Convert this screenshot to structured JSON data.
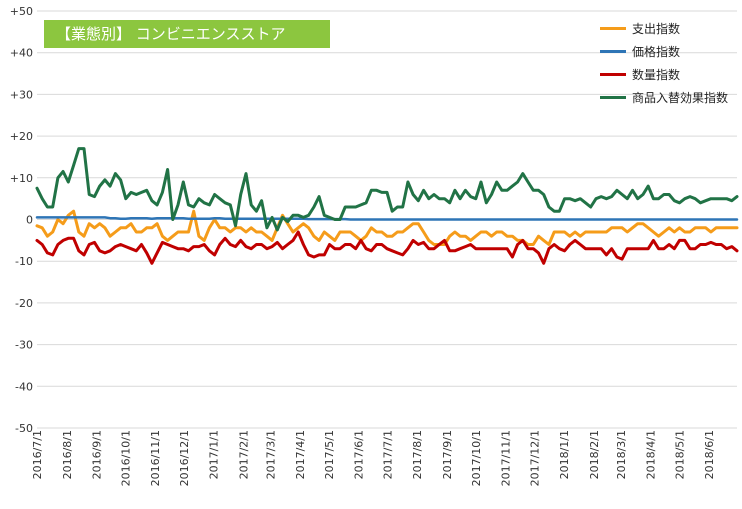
{
  "chart_data": {
    "type": "line",
    "title": "【業態別】 コンビニエンスストア",
    "xlabel": "",
    "ylabel": "",
    "ylim": [
      -50,
      50
    ],
    "y_ticks": [
      "+50",
      "+40",
      "+30",
      "+20",
      "+10",
      "0",
      "-10",
      "-20",
      "-30",
      "-40",
      "-50"
    ],
    "y_tick_values": [
      50,
      40,
      30,
      20,
      10,
      0,
      -10,
      -20,
      -30,
      -40,
      -50
    ],
    "x_start": "2016/7/1",
    "x_end": "2018/6/30",
    "x_tick_labels": [
      "2016/7/1",
      "2016/8/1",
      "2016/9/1",
      "2016/10/1",
      "2016/11/1",
      "2016/12/1",
      "2017/1/1",
      "2017/2/1",
      "2017/3/1",
      "2017/4/1",
      "2017/5/1",
      "2017/6/1",
      "2017/7/1",
      "2017/8/1",
      "2017/9/1",
      "2017/10/1",
      "2017/11/1",
      "2017/12/1",
      "2018/1/1",
      "2018/2/1",
      "2018/3/1",
      "2018/4/1",
      "2018/5/1",
      "2018/6/1"
    ],
    "grid": "horizontal",
    "legend_position": "top-right",
    "series": [
      {
        "name": "支出指数",
        "color": "#f59c1a",
        "values": [
          -1.5,
          -2,
          -4,
          -3,
          0,
          -1,
          1,
          2,
          -3,
          -4,
          -1,
          -2,
          -1,
          -2,
          -4,
          -3,
          -2,
          -2,
          -1,
          -3,
          -3,
          -2,
          -2,
          -1,
          -4,
          -5,
          -4,
          -3,
          -3,
          -3,
          2,
          -4,
          -5,
          -2,
          0,
          -2,
          -2,
          -3,
          -2,
          -2,
          -3,
          -2,
          -3,
          -3,
          -4,
          -5,
          -2,
          1,
          -1,
          -3,
          -2,
          -1,
          -2,
          -4,
          -5,
          -3,
          -4,
          -5,
          -3,
          -3,
          -3,
          -4,
          -5,
          -4,
          -2,
          -3,
          -3,
          -4,
          -4,
          -3,
          -3,
          -2,
          -1,
          -1,
          -3,
          -5,
          -6,
          -6,
          -6,
          -4,
          -3,
          -4,
          -4,
          -5,
          -4,
          -3,
          -3,
          -4,
          -3,
          -3,
          -4,
          -4,
          -5,
          -5,
          -6,
          -6,
          -4,
          -5,
          -6,
          -3,
          -3,
          -3,
          -4,
          -3,
          -4,
          -3,
          -3,
          -3,
          -3,
          -3,
          -2,
          -2,
          -2,
          -3,
          -2,
          -1,
          -1,
          -2,
          -3,
          -4,
          -3,
          -2,
          -3,
          -2,
          -3,
          -3,
          -2,
          -2,
          -2,
          -3,
          -2,
          -2,
          -2,
          -2,
          -2
        ]
      },
      {
        "name": "価格指数",
        "color": "#2e75b6",
        "values": [
          0.5,
          0.5,
          0.5,
          0.5,
          0.5,
          0.5,
          0.5,
          0.5,
          0.5,
          0.5,
          0.5,
          0.5,
          0.5,
          0.5,
          0.3,
          0.3,
          0.2,
          0.2,
          0.3,
          0.3,
          0.3,
          0.3,
          0.2,
          0.3,
          0.3,
          0.3,
          0.3,
          0.3,
          0.3,
          0.2,
          0.2,
          0.2,
          0.2,
          0.2,
          0.3,
          0.3,
          0.2,
          0.2,
          0.2,
          0.2,
          0.2,
          0.2,
          0.2,
          0.2,
          0.2,
          0.2,
          0.2,
          0.2,
          0.2,
          0.2,
          0.2,
          0.2,
          0.1,
          0.1,
          0.1,
          0.1,
          0.1,
          0.1,
          0.1,
          0.1,
          0,
          0,
          0,
          0,
          0,
          0,
          0,
          0,
          0,
          0,
          0,
          0,
          0,
          0,
          0,
          0,
          0,
          0,
          0,
          0,
          0,
          0,
          0,
          0,
          0,
          0,
          0,
          0,
          0,
          0,
          0,
          0,
          0,
          0,
          0,
          0,
          0,
          0,
          0,
          0,
          0,
          0,
          0,
          0,
          0,
          0,
          0,
          0,
          0,
          0,
          0,
          0,
          0,
          0,
          0,
          0,
          0,
          0,
          0,
          0,
          0,
          0,
          0,
          0,
          0,
          0,
          0,
          0,
          0,
          0,
          0,
          0,
          0,
          0,
          0
        ]
      },
      {
        "name": "数量指数",
        "color": "#c00000",
        "values": [
          -5,
          -6,
          -8,
          -8.5,
          -6,
          -5,
          -4.5,
          -4.5,
          -7.5,
          -8.5,
          -6,
          -5.5,
          -7.5,
          -8,
          -7.5,
          -6.5,
          -6,
          -6.5,
          -7,
          -7.5,
          -6,
          -8,
          -10.5,
          -8,
          -5.5,
          -6,
          -6.5,
          -7,
          -7,
          -7.5,
          -6.5,
          -6.5,
          -6,
          -7.5,
          -8.5,
          -6,
          -4.5,
          -6,
          -6.5,
          -5,
          -6.5,
          -7,
          -6,
          -6,
          -7,
          -6.5,
          -5.5,
          -7,
          -6,
          -5,
          -3,
          -6,
          -8.5,
          -9,
          -8.5,
          -8.5,
          -6,
          -7,
          -7,
          -6,
          -6,
          -7,
          -5,
          -7,
          -7.5,
          -6,
          -6,
          -7,
          -7.5,
          -8,
          -8.5,
          -7,
          -5,
          -6,
          -5.5,
          -7,
          -7,
          -6,
          -5,
          -7.5,
          -7.5,
          -7,
          -6.5,
          -6,
          -7,
          -7,
          -7,
          -7,
          -7,
          -7,
          -7,
          -9,
          -6,
          -5,
          -7,
          -7,
          -8,
          -10.5,
          -7,
          -6,
          -7,
          -7.5,
          -6,
          -5,
          -6,
          -7,
          -7,
          -7,
          -7,
          -8.5,
          -7,
          -9,
          -9.5,
          -7,
          -7,
          -7,
          -7,
          -7,
          -5,
          -7,
          -7,
          -6,
          -7,
          -5,
          -5,
          -7,
          -7,
          -6,
          -6,
          -5.5,
          -6,
          -6,
          -7,
          -6.5,
          -7.5
        ]
      },
      {
        "name": "商品入替効果指数",
        "color": "#217346",
        "values": [
          7.5,
          5,
          3,
          3,
          10,
          11.5,
          9,
          13,
          17,
          17,
          6,
          5.5,
          8,
          9.5,
          8,
          11,
          9.5,
          5,
          6.5,
          6,
          6.5,
          7,
          4.5,
          3.5,
          6.5,
          12,
          0,
          3.5,
          9,
          3.5,
          3,
          5,
          4,
          3.5,
          6,
          5,
          4,
          3.5,
          -1.5,
          6,
          11,
          3.5,
          2,
          4.5,
          -2,
          0.5,
          -2.5,
          0.5,
          -0.5,
          1,
          1,
          0.5,
          1,
          3,
          5.5,
          1,
          0.5,
          0,
          0,
          3,
          3,
          3,
          3.5,
          4,
          7,
          7,
          6.5,
          6.5,
          2,
          3,
          3,
          9,
          6,
          4.5,
          7,
          5,
          6,
          5,
          5,
          4,
          7,
          5,
          7,
          5.5,
          5,
          9,
          4,
          6,
          9,
          7,
          7,
          8,
          9,
          11,
          9,
          7,
          7,
          6,
          3,
          2,
          2,
          5,
          5,
          4.5,
          5,
          4,
          3,
          5,
          5.5,
          5,
          5.5,
          7,
          6,
          5,
          7,
          5,
          6,
          8,
          5,
          5,
          6,
          6,
          4.5,
          4,
          5,
          5.5,
          5,
          4,
          4.5,
          5,
          5,
          5,
          5,
          4.5,
          5.5
        ]
      }
    ]
  }
}
